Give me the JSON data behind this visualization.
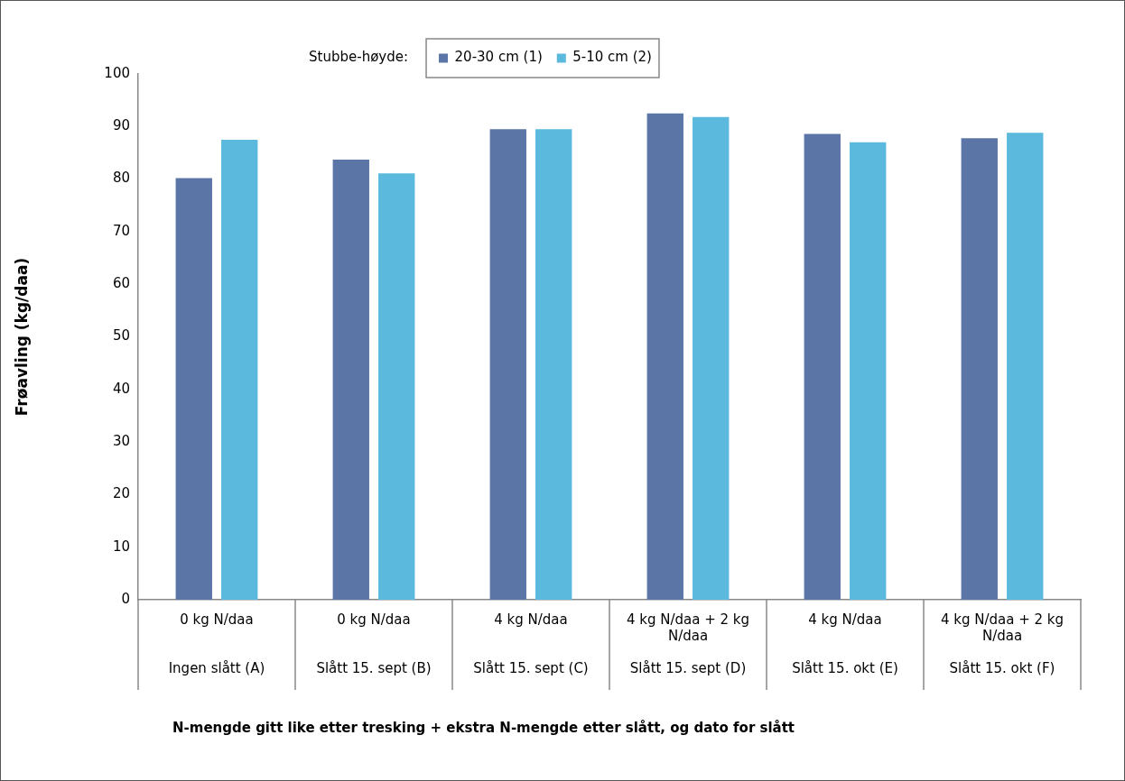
{
  "chart_data": {
    "type": "bar",
    "categories": [
      "0 kg N/daa\nIngen slått (A)",
      "0 kg N/daa\nSlått 15. sept (B)",
      "4 kg N/daa\nSlått 15. sept (C)",
      "4 kg N/daa + 2 kg N/daa\nSlått 15. sept (D)",
      "4 kg N/daa\nSlått 15. okt (E)",
      "4 kg N/daa + 2 kg N/daa\nSlått 15. okt (F)"
    ],
    "series": [
      {
        "name": "20-30 cm (1)",
        "color": "#5b76a6",
        "values": [
          80.2,
          83.7,
          89.5,
          92.5,
          88.6,
          87.8
        ]
      },
      {
        "name": "5-10 cm (2)",
        "color": "#5ab9dc",
        "values": [
          87.5,
          81.1,
          89.5,
          91.8,
          87.0,
          88.8
        ]
      }
    ],
    "ylabel": "Frøavling (kg/daa)",
    "annotations": [
      "N-mengde gitt like etter tresking + ekstra N-mengde etter slått, og dato for slått"
    ],
    "legend_title": "Stubbe-høyde:",
    "legend": "top",
    "ylim": [
      0,
      100
    ],
    "yticks": [
      0,
      10,
      20,
      30,
      40,
      50,
      60,
      70,
      80,
      90,
      100
    ]
  }
}
